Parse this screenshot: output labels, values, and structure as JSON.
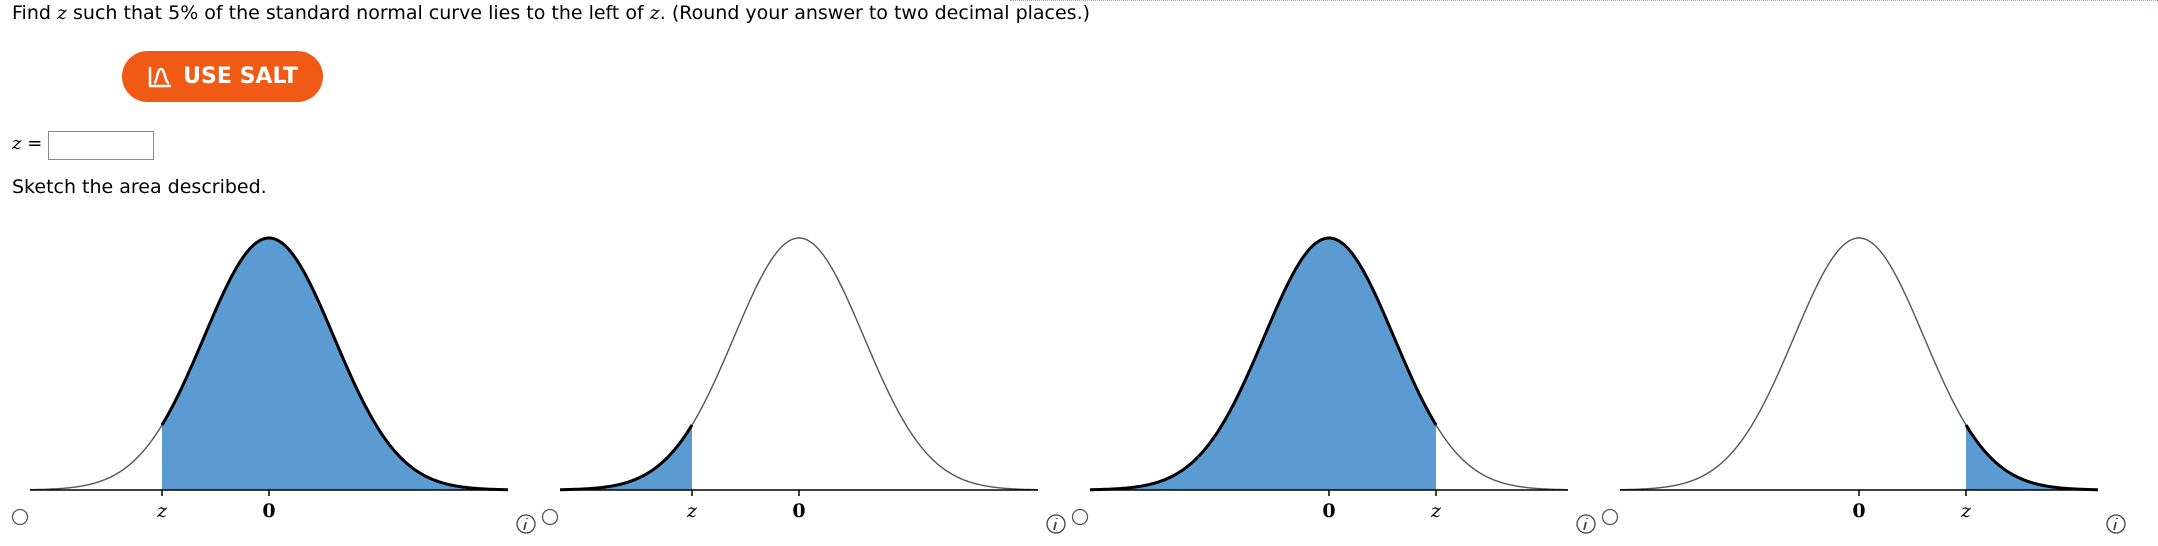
{
  "question": {
    "prefix": "Find ",
    "var1": "z",
    "middle": " such that 5% of the standard normal curve lies to the left of ",
    "var2": "z",
    "suffix": ". (Round your answer to two decimal places.)"
  },
  "salt_button": "USE SALT",
  "answer": {
    "var": "z",
    "equals": "="
  },
  "sketch_prompt": "Sketch the area described.",
  "options": [
    {
      "tick_labels": [
        "z",
        "0"
      ]
    },
    {
      "tick_labels": [
        "z",
        "0"
      ]
    },
    {
      "tick_labels": [
        "0",
        "z"
      ]
    },
    {
      "tick_labels": [
        "0",
        "z"
      ]
    }
  ]
}
